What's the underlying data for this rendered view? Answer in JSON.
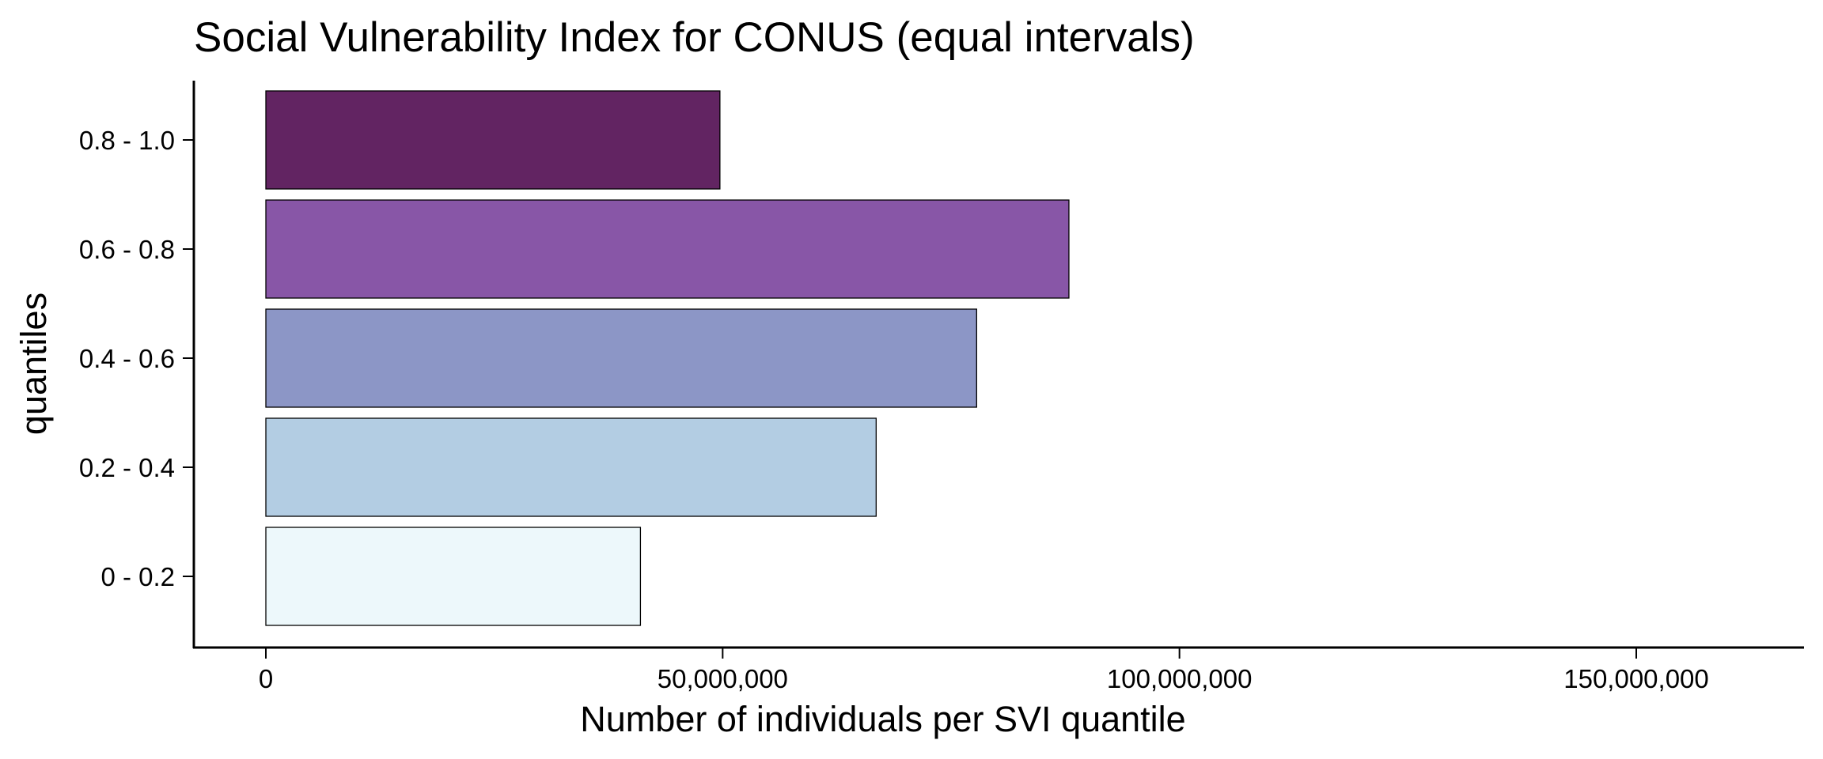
{
  "chart_data": {
    "type": "bar",
    "orientation": "horizontal",
    "title": "Social Vulnerability Index for CONUS (equal intervals)",
    "xlabel": "Number of individuals per SVI quantile",
    "ylabel": "quantiles",
    "categories": [
      "0 - 0.2",
      "0.2 - 0.4",
      "0.4 - 0.6",
      "0.6 - 0.8",
      "0.8 - 1.0"
    ],
    "values": [
      41000000,
      66800000,
      77800000,
      87900000,
      49700000
    ],
    "colors": [
      "#EDF8FB",
      "#B3CDE3",
      "#8C96C6",
      "#8856A7",
      "#622462"
    ],
    "xlim": [
      0,
      167000000
    ],
    "xticks": [
      0,
      50000000,
      100000000,
      150000000
    ],
    "xtick_labels": [
      "0",
      "50,000,000",
      "100,000,000",
      "150,000,000"
    ],
    "grid": false,
    "legend": "none"
  }
}
